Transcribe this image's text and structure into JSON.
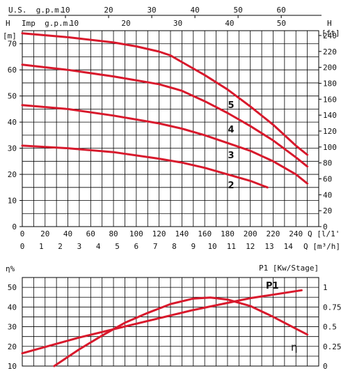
{
  "colors": {
    "curve": "#d8192c",
    "grid": "#000000",
    "text": "#111111"
  },
  "chart_data": [
    {
      "type": "line",
      "title": "",
      "axes": {
        "top_us_label": "U.S.  g.p.m.",
        "top_us_ticks": [
          10,
          20,
          30,
          40,
          50,
          60
        ],
        "top_imp_label": "Imp  g.p.m.",
        "top_imp_ticks": [
          10,
          20,
          30,
          40,
          50
        ],
        "left_label": "H",
        "left_unit": "[m]",
        "left_ticks": [
          0,
          10,
          20,
          30,
          40,
          50,
          60,
          70
        ],
        "right_label": "H",
        "right_unit": "[ft]",
        "right_ticks": [
          0,
          20,
          40,
          60,
          80,
          100,
          120,
          140,
          160,
          180,
          200,
          220,
          240
        ],
        "bottom_ticks": [
          0,
          20,
          40,
          60,
          80,
          100,
          120,
          140,
          160,
          180,
          200,
          220,
          240
        ],
        "bottom_label": "Q [l/1']",
        "bottom2_ticks": [
          0,
          1,
          2,
          3,
          4,
          5,
          6,
          7,
          8,
          9,
          10,
          11,
          12,
          13,
          14
        ],
        "bottom2_label": "Q [m³/h]"
      },
      "xlim": [
        0,
        260
      ],
      "ylim": [
        0,
        75
      ],
      "grid": true,
      "series": [
        {
          "name": "5",
          "x": [
            0,
            40,
            80,
            100,
            120,
            130,
            140,
            160,
            180,
            200,
            220,
            240,
            250
          ],
          "y": [
            74,
            72.5,
            70.5,
            69,
            67,
            65.5,
            63,
            58,
            52.5,
            46,
            39,
            31,
            27.5
          ]
        },
        {
          "name": "4",
          "x": [
            0,
            40,
            80,
            120,
            140,
            160,
            180,
            200,
            220,
            240,
            250
          ],
          "y": [
            62,
            60,
            57.5,
            54.5,
            52,
            48,
            43.5,
            38.5,
            33,
            26.5,
            23
          ]
        },
        {
          "name": "3",
          "x": [
            0,
            40,
            80,
            120,
            140,
            160,
            180,
            200,
            220,
            240,
            250
          ],
          "y": [
            46.5,
            45,
            42.5,
            39.5,
            37.5,
            35,
            32,
            29,
            25,
            20,
            16.5
          ]
        },
        {
          "name": "2",
          "x": [
            0,
            40,
            80,
            120,
            140,
            160,
            180,
            200,
            215
          ],
          "y": [
            31,
            30,
            28.5,
            26,
            24.5,
            22.5,
            20,
            17.5,
            15
          ]
        }
      ]
    },
    {
      "type": "line",
      "title": "",
      "axes": {
        "left_label": "η%",
        "left_ticks": [
          10,
          20,
          30,
          40,
          50
        ],
        "right_label": "P1 [Kw/Stage]",
        "right_ticks": [
          "0",
          "0.25",
          "0.5",
          "0.75",
          "1"
        ]
      },
      "xlim": [
        0,
        260
      ],
      "ylim": [
        10,
        55
      ],
      "grid": true,
      "series": [
        {
          "name": "η",
          "x": [
            28,
            50,
            70,
            90,
            110,
            130,
            150,
            165,
            180,
            200,
            220,
            240,
            250
          ],
          "y": [
            10,
            18.5,
            25.5,
            32,
            37,
            41.5,
            44.3,
            44.8,
            43.8,
            40.5,
            35,
            29,
            26
          ]
        },
        {
          "name": "P1",
          "x": [
            0,
            50,
            100,
            150,
            200,
            245
          ],
          "y": [
            16.5,
            24.5,
            31.5,
            38.5,
            44.5,
            48.5
          ]
        }
      ],
      "labels": {
        "efficiency_curve": "η",
        "power_curve": "P1"
      }
    }
  ]
}
